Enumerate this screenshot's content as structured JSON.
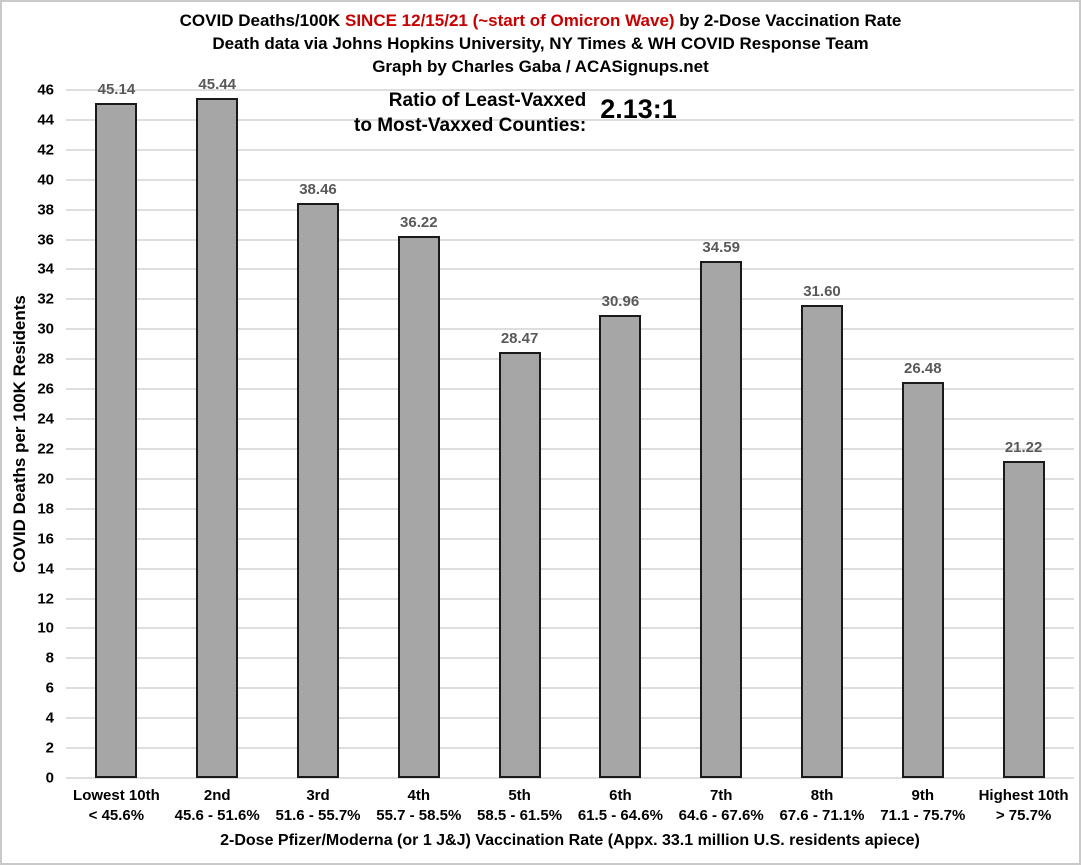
{
  "title": {
    "line1_prefix": "COVID Deaths/100K ",
    "line1_highlight": "SINCE 12/15/21 (~start of Omicron Wave)",
    "line1_suffix": " by 2-Dose Vaccination Rate",
    "line2": "Death data via Johns Hopkins University, NY Times & WH COVID Response Team",
    "line3": "Graph by Charles Gaba / ACASignups.net"
  },
  "annotation": {
    "label": "Ratio of Least-Vaxxed\nto Most-Vaxxed Counties:",
    "value": "2.13:1"
  },
  "colors": {
    "bar_fill": "#a6a6a6",
    "bar_border": "#1a1a1a",
    "value_label": "#595959",
    "gridline": "#dedede",
    "title_highlight": "#c80000",
    "text": "#000000",
    "frame_border": "#c9c9c9"
  },
  "chart_data": {
    "type": "bar",
    "title": "COVID Deaths/100K SINCE 12/15/21 (~start of Omicron Wave) by 2-Dose Vaccination Rate",
    "subtitle": "Death data via Johns Hopkins University, NY Times & WH COVID Response Team",
    "credit": "Graph by Charles Gaba / ACASignups.net",
    "categories": [
      {
        "tier": "Lowest 10th",
        "range": "< 45.6%"
      },
      {
        "tier": "2nd",
        "range": "45.6 - 51.6%"
      },
      {
        "tier": "3rd",
        "range": "51.6 - 55.7%"
      },
      {
        "tier": "4th",
        "range": "55.7 - 58.5%"
      },
      {
        "tier": "5th",
        "range": "58.5 - 61.5%"
      },
      {
        "tier": "6th",
        "range": "61.5 - 64.6%"
      },
      {
        "tier": "7th",
        "range": "64.6 - 67.6%"
      },
      {
        "tier": "8th",
        "range": "67.6 - 71.1%"
      },
      {
        "tier": "9th",
        "range": "71.1 - 75.7%"
      },
      {
        "tier": "Highest 10th",
        "range": "> 75.7%"
      }
    ],
    "values": [
      45.14,
      45.44,
      38.46,
      36.22,
      28.47,
      30.96,
      34.59,
      31.6,
      26.48,
      21.22
    ],
    "value_labels": [
      "45.14",
      "45.44",
      "38.46",
      "36.22",
      "28.47",
      "30.96",
      "34.59",
      "31.60",
      "26.48",
      "21.22"
    ],
    "xlabel": "2-Dose Pfizer/Moderna (or 1 J&J) Vaccination Rate (Appx. 33.1 million U.S. residents apiece)",
    "ylabel": "COVID Deaths per 100K Residents",
    "ylim": [
      0,
      46
    ],
    "ytick_step": 2,
    "grid": true,
    "legend": "none",
    "annotation_label": "Ratio of Least-Vaxxed to Most-Vaxxed Counties:",
    "annotation_value": "2.13:1"
  }
}
